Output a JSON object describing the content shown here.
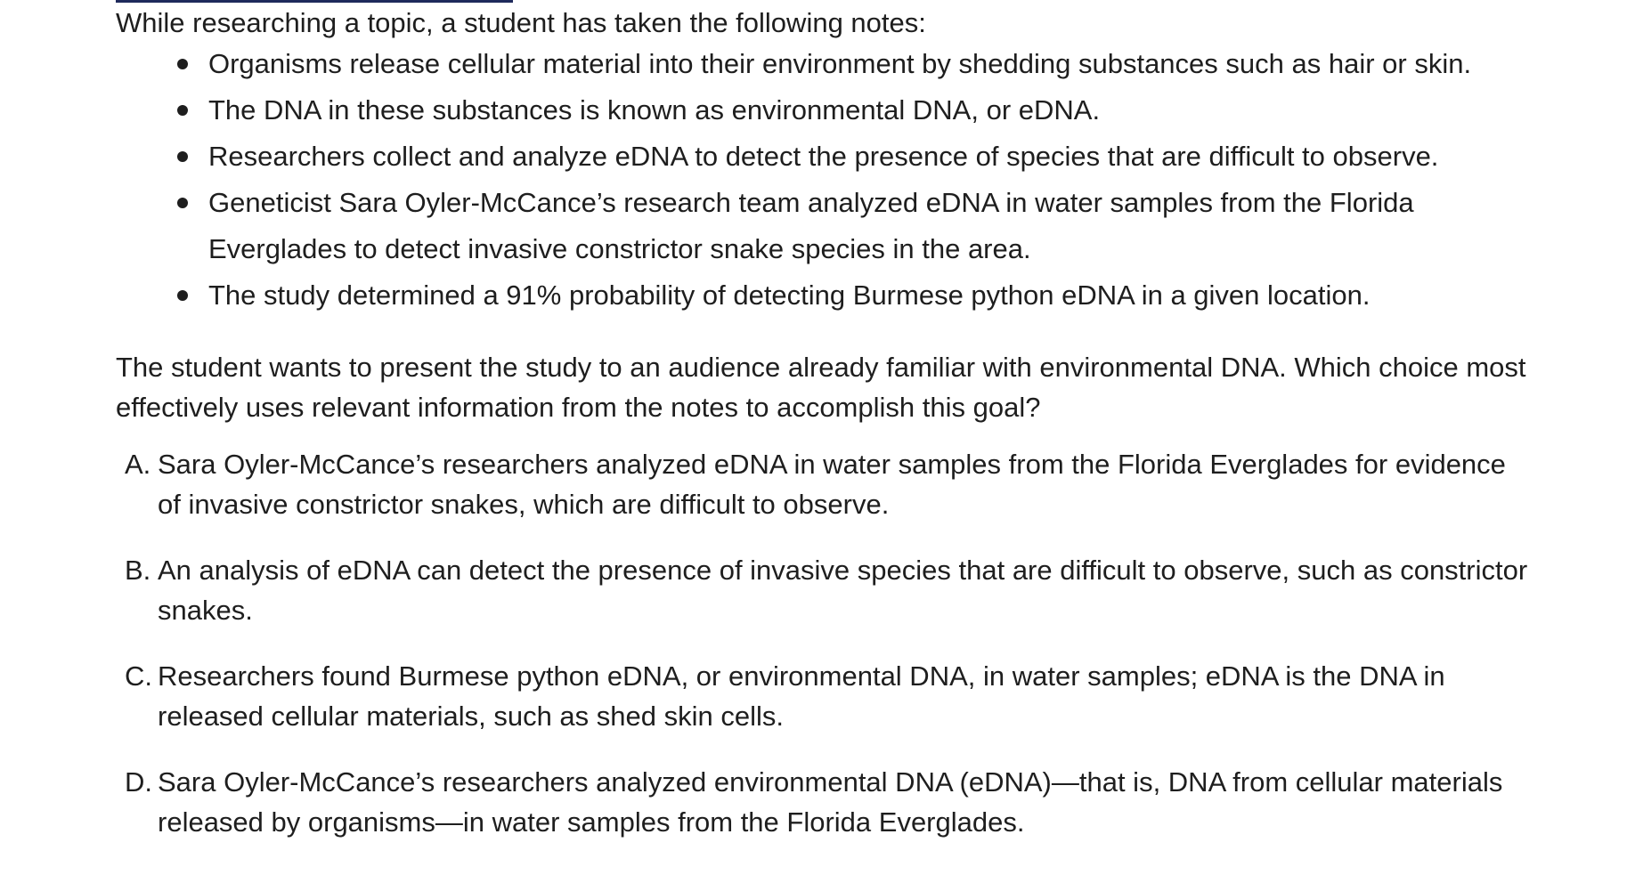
{
  "passage": {
    "intro": "While researching a topic, a student has taken the following notes:",
    "notes": [
      "Organisms release cellular material into their environment by shedding substances such as hair or skin.",
      "The DNA in these substances is known as environmental DNA, or eDNA.",
      "Researchers collect and analyze eDNA to detect the presence of species that are difficult to observe.",
      "Geneticist Sara Oyler-McCance’s research team analyzed eDNA in water samples from the Florida Everglades to detect invasive constrictor snake species in the area.",
      "The study determined a 91% probability of detecting Burmese python eDNA in a given location."
    ]
  },
  "question": "The student wants to present the study to an audience already familiar with environmental DNA. Which choice most effectively uses relevant information from the notes to accomplish this goal?",
  "choices": [
    {
      "letter": "A.",
      "text": "Sara Oyler-McCance’s researchers analyzed eDNA in water samples from the Florida Everglades for evidence of invasive constrictor snakes, which are difficult to observe."
    },
    {
      "letter": "B.",
      "text": "An analysis of eDNA can detect the presence of invasive species that are difficult to observe, such as constrictor snakes."
    },
    {
      "letter": "C.",
      "text": "Researchers found Burmese python eDNA, or environmental DNA, in water samples; eDNA is the DNA in released cellular materials, such as shed skin cells."
    },
    {
      "letter": "D.",
      "text": "Sara Oyler-McCance’s researchers analyzed environmental DNA (eDNA)—that is, DNA from cellular materials released by organisms—in water samples from the Florida Everglades."
    }
  ]
}
